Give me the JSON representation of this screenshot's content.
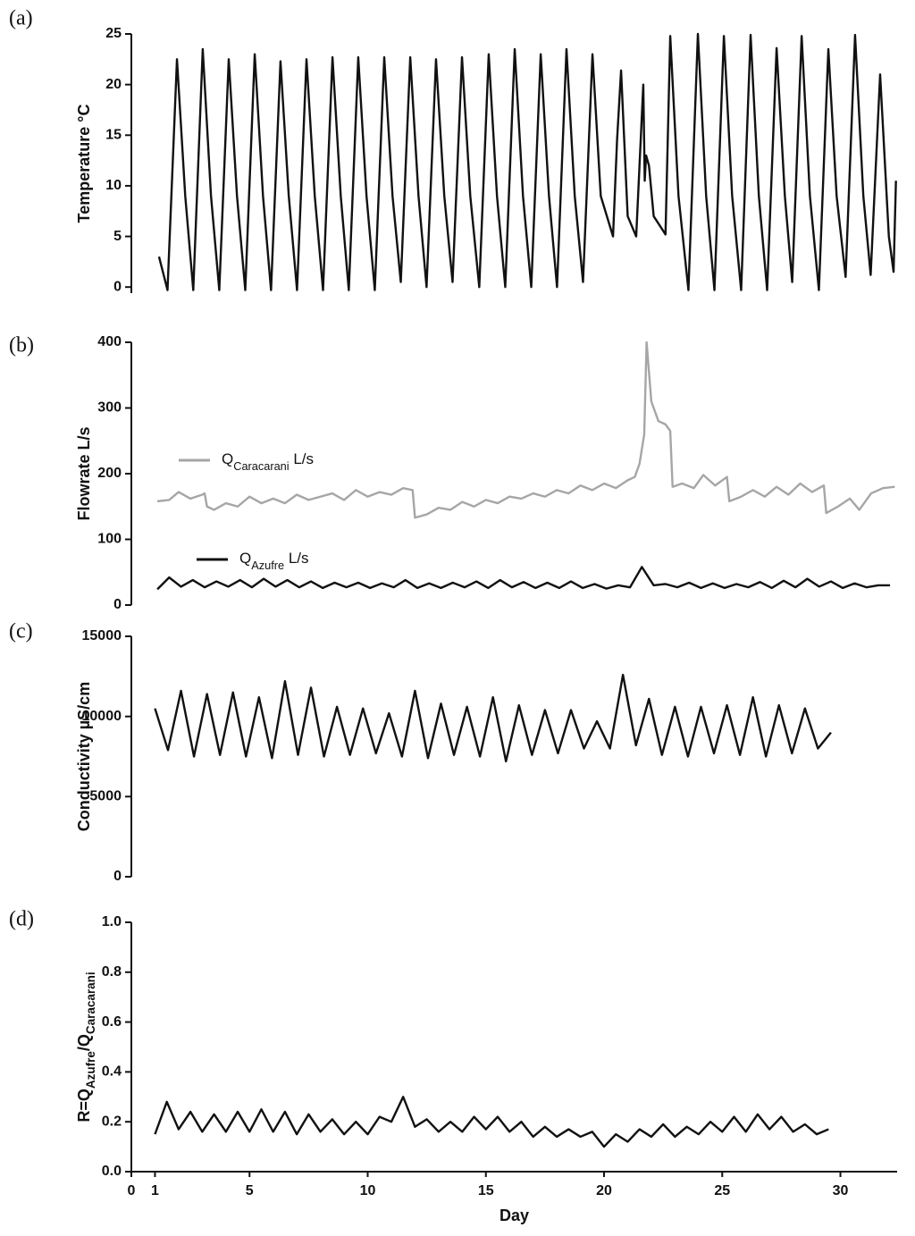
{
  "chart_data": [
    {
      "type": "line",
      "panel_label": "(a)",
      "ylabel": [
        {
          "text": "Temperature °C"
        }
      ],
      "xlim": [
        0,
        32.4
      ],
      "ylim": [
        -0.6,
        25
      ],
      "yticks": [
        0,
        5,
        10,
        15,
        20,
        25
      ],
      "series": [
        {
          "color": "#111111",
          "x": [
            1.17,
            1.53,
            1.93,
            2.28,
            2.62,
            3.02,
            3.37,
            3.72,
            4.12,
            4.47,
            4.82,
            5.22,
            5.57,
            5.91,
            6.31,
            6.66,
            7.01,
            7.41,
            7.76,
            8.11,
            8.51,
            8.86,
            9.2,
            9.6,
            9.95,
            10.3,
            10.7,
            11.05,
            11.4,
            11.8,
            12.15,
            12.49,
            12.89,
            13.24,
            13.59,
            13.99,
            14.34,
            14.72,
            15.12,
            15.47,
            15.82,
            16.22,
            16.57,
            16.92,
            17.32,
            17.67,
            18.01,
            18.41,
            18.76,
            19.11,
            19.51,
            19.86,
            20.38,
            20.55,
            20.72,
            21.0,
            21.36,
            21.66,
            21.72,
            21.78,
            21.9,
            22.1,
            22.6,
            22.8,
            23.15,
            23.57,
            23.97,
            24.32,
            24.67,
            25.07,
            25.42,
            25.8,
            26.2,
            26.55,
            26.9,
            27.3,
            27.65,
            27.96,
            28.36,
            28.71,
            29.09,
            29.49,
            29.84,
            30.22,
            30.62,
            30.97,
            31.28,
            31.68,
            31.75,
            32.05,
            32.25,
            32.35
          ],
          "values": [
            3,
            -0.3,
            22.5,
            9,
            -0.3,
            23.5,
            9,
            -0.3,
            22.5,
            9,
            -0.3,
            23,
            9,
            -0.3,
            22.3,
            9,
            -0.3,
            22.5,
            9,
            -0.3,
            22.7,
            9,
            -0.3,
            22.7,
            9,
            -0.3,
            22.7,
            9,
            0.5,
            22.7,
            9,
            0,
            22.5,
            9,
            0.5,
            22.7,
            9,
            0,
            23,
            9,
            0,
            23.5,
            9,
            0,
            23,
            9,
            0,
            23.5,
            9,
            0.5,
            23,
            9,
            5,
            14.5,
            21.4,
            7,
            5,
            20,
            10.5,
            13,
            12,
            7,
            5.2,
            24.8,
            9,
            -0.3,
            25,
            9,
            -0.3,
            24.8,
            9,
            -0.3,
            24.9,
            9,
            -0.3,
            23.6,
            9,
            0.5,
            24.8,
            9,
            -0.3,
            23.5,
            9,
            1,
            24.9,
            9,
            1.2,
            21,
            18,
            5,
            1.5,
            10.5
          ]
        }
      ]
    },
    {
      "type": "line",
      "panel_label": "(b)",
      "ylabel": [
        {
          "text": "Flowrate L/s"
        }
      ],
      "xlim": [
        0,
        32.4
      ],
      "ylim": [
        0,
        400
      ],
      "yticks": [
        0,
        100,
        200,
        300,
        400
      ],
      "series": [
        {
          "name": [
            {
              "text": "Q"
            },
            {
              "text": "Caracarani",
              "sub": true
            },
            {
              "text": " L/s"
            }
          ],
          "color": "#a6a6a6",
          "x": [
            1.1,
            1.6,
            2,
            2.5,
            3,
            3.1,
            3.2,
            3.5,
            4,
            4.5,
            5,
            5.5,
            6,
            6.5,
            7,
            7.5,
            8,
            8.5,
            9,
            9.5,
            10,
            10.5,
            11,
            11.5,
            11.9,
            12,
            12.5,
            13,
            13.5,
            14,
            14.5,
            15,
            15.5,
            16,
            16.5,
            17,
            17.5,
            18,
            18.5,
            19,
            19.5,
            20,
            20.5,
            21,
            21.3,
            21.5,
            21.7,
            21.8,
            22,
            22.3,
            22.6,
            22.8,
            22.9,
            23.3,
            23.8,
            24.2,
            24.7,
            25.2,
            25.3,
            25.8,
            26.3,
            26.8,
            27.3,
            27.8,
            28.3,
            28.8,
            29.3,
            29.4,
            29.9,
            30.4,
            30.8,
            31.3,
            31.8,
            32.3
          ],
          "values": [
            158,
            160,
            172,
            162,
            168,
            170,
            150,
            145,
            155,
            150,
            165,
            155,
            162,
            155,
            168,
            160,
            165,
            170,
            160,
            175,
            165,
            172,
            168,
            178,
            175,
            133,
            138,
            148,
            145,
            157,
            150,
            160,
            155,
            165,
            162,
            170,
            165,
            175,
            170,
            182,
            175,
            185,
            178,
            190,
            195,
            215,
            260,
            400,
            310,
            280,
            275,
            265,
            180,
            185,
            178,
            198,
            182,
            195,
            158,
            165,
            175,
            165,
            180,
            168,
            185,
            172,
            182,
            140,
            150,
            162,
            145,
            170,
            178,
            180
          ]
        },
        {
          "name": [
            {
              "text": "Q"
            },
            {
              "text": "Azufre",
              "sub": true
            },
            {
              "text": " L/s"
            }
          ],
          "color": "#111111",
          "x": [
            1.1,
            1.6,
            2.1,
            2.6,
            3.1,
            3.6,
            4.1,
            4.6,
            5.1,
            5.6,
            6.1,
            6.6,
            7.1,
            7.6,
            8.1,
            8.6,
            9.1,
            9.6,
            10.1,
            10.6,
            11.1,
            11.6,
            12.1,
            12.6,
            13.1,
            13.6,
            14.1,
            14.6,
            15.1,
            15.6,
            16.1,
            16.6,
            17.1,
            17.6,
            18.1,
            18.6,
            19.1,
            19.6,
            20.1,
            20.6,
            21.1,
            21.6,
            22.1,
            22.6,
            23.1,
            23.6,
            24.1,
            24.6,
            25.1,
            25.6,
            26.1,
            26.6,
            27.1,
            27.6,
            28.1,
            28.6,
            29.1,
            29.6,
            30.1,
            30.6,
            31.1,
            31.6,
            32.1
          ],
          "values": [
            24,
            42,
            28,
            38,
            27,
            36,
            28,
            38,
            27,
            40,
            28,
            38,
            27,
            36,
            26,
            34,
            27,
            34,
            26,
            33,
            27,
            38,
            26,
            33,
            26,
            34,
            27,
            36,
            26,
            38,
            27,
            35,
            26,
            34,
            26,
            36,
            26,
            32,
            25,
            30,
            27,
            58,
            30,
            32,
            27,
            34,
            26,
            33,
            26,
            32,
            27,
            35,
            26,
            37,
            27,
            40,
            28,
            36,
            26,
            33,
            27,
            30,
            30
          ]
        }
      ]
    },
    {
      "type": "line",
      "panel_label": "(c)",
      "ylabel": [
        {
          "text": "Conductivity µS/cm"
        }
      ],
      "xlim": [
        0,
        32.4
      ],
      "ylim": [
        0,
        15000
      ],
      "yticks": [
        0,
        5000,
        10000,
        15000
      ],
      "series": [
        {
          "color": "#111111",
          "x": [
            1.0,
            1.55,
            2.1,
            2.65,
            3.2,
            3.75,
            4.3,
            4.85,
            5.4,
            5.95,
            6.5,
            7.05,
            7.6,
            8.15,
            8.7,
            9.25,
            9.8,
            10.35,
            10.9,
            11.45,
            12.0,
            12.55,
            13.1,
            13.65,
            14.2,
            14.75,
            15.3,
            15.85,
            16.4,
            16.95,
            17.5,
            18.05,
            18.6,
            19.15,
            19.7,
            20.25,
            20.8,
            21.35,
            21.9,
            22.45,
            23.0,
            23.55,
            24.1,
            24.65,
            25.2,
            25.75,
            26.3,
            26.85,
            27.4,
            27.95,
            28.5,
            29.05,
            29.6
          ],
          "values": [
            10500,
            7900,
            11600,
            7500,
            11400,
            7600,
            11500,
            7500,
            11200,
            7400,
            12200,
            7600,
            11800,
            7500,
            10600,
            7600,
            10500,
            7700,
            10200,
            7500,
            11600,
            7400,
            10800,
            7600,
            10600,
            7500,
            11200,
            7200,
            10700,
            7600,
            10400,
            7700,
            10400,
            8000,
            9700,
            8000,
            12600,
            8200,
            11100,
            7600,
            10600,
            7500,
            10600,
            7700,
            10700,
            7600,
            11200,
            7500,
            10700,
            7700,
            10500,
            8000,
            9000
          ]
        }
      ]
    },
    {
      "type": "line",
      "panel_label": "(d)",
      "ylabel": [
        {
          "text": "R=Q"
        },
        {
          "text": "Azufre",
          "sub": true
        },
        {
          "text": "/Q"
        },
        {
          "text": "Caracarani",
          "sub": true
        }
      ],
      "xlabel": "Day",
      "xlim": [
        0,
        32.4
      ],
      "xticks": [
        0,
        1,
        5,
        10,
        15,
        20,
        25,
        30
      ],
      "ylim": [
        0,
        1.0
      ],
      "yticks": [
        {
          "value": 0,
          "label": "0.0"
        },
        0.2,
        0.4,
        0.6,
        0.8,
        {
          "value": 1,
          "label": "1.0"
        }
      ],
      "series": [
        {
          "color": "#111111",
          "x": [
            1.0,
            1.5,
            2.0,
            2.5,
            3.0,
            3.5,
            4.0,
            4.5,
            5.0,
            5.5,
            6.0,
            6.5,
            7.0,
            7.5,
            8.0,
            8.5,
            9.0,
            9.5,
            10.0,
            10.5,
            11.0,
            11.5,
            12.0,
            12.5,
            13.0,
            13.5,
            14.0,
            14.5,
            15.0,
            15.5,
            16.0,
            16.5,
            17.0,
            17.5,
            18.0,
            18.5,
            19.0,
            19.5,
            20.0,
            20.5,
            21.0,
            21.5,
            22.0,
            22.5,
            23.0,
            23.5,
            24.0,
            24.5,
            25.0,
            25.5,
            26.0,
            26.5,
            27.0,
            27.5,
            28.0,
            28.5,
            29.0,
            29.5
          ],
          "values": [
            0.15,
            0.28,
            0.17,
            0.24,
            0.16,
            0.23,
            0.16,
            0.24,
            0.16,
            0.25,
            0.16,
            0.24,
            0.15,
            0.23,
            0.16,
            0.21,
            0.15,
            0.2,
            0.15,
            0.22,
            0.2,
            0.3,
            0.18,
            0.21,
            0.16,
            0.2,
            0.16,
            0.22,
            0.17,
            0.22,
            0.16,
            0.2,
            0.14,
            0.18,
            0.14,
            0.17,
            0.14,
            0.16,
            0.1,
            0.15,
            0.12,
            0.17,
            0.14,
            0.19,
            0.14,
            0.18,
            0.15,
            0.2,
            0.16,
            0.22,
            0.16,
            0.23,
            0.17,
            0.22,
            0.16,
            0.19,
            0.15,
            0.17
          ]
        }
      ]
    }
  ]
}
